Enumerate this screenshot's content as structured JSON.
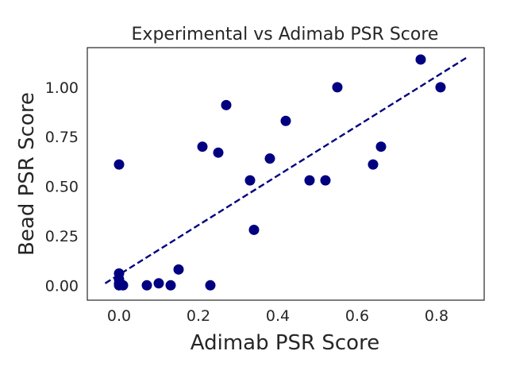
{
  "chart_data": {
    "type": "scatter",
    "title": "Experimental vs Adimab PSR Score",
    "xlabel": "Adimab PSR Score",
    "ylabel": "Bead PSR Score",
    "xlim": [
      -0.08,
      0.92
    ],
    "ylim": [
      -0.075,
      1.2
    ],
    "xticks": [
      "0.0",
      "0.2",
      "0.4",
      "0.6",
      "0.8"
    ],
    "yticks": [
      "0.00",
      "0.25",
      "0.50",
      "0.75",
      "1.00"
    ],
    "grid": false,
    "marker_color": "#000080",
    "trendline": {
      "style": "dashed",
      "color": "#000080",
      "x": [
        -0.035,
        0.88
      ],
      "y": [
        0.01,
        1.155
      ]
    },
    "points": [
      {
        "x": 0.0,
        "y": 0.0
      },
      {
        "x": 0.0,
        "y": 0.01
      },
      {
        "x": 0.0,
        "y": 0.03
      },
      {
        "x": 0.0,
        "y": 0.06
      },
      {
        "x": 0.0,
        "y": 0.61
      },
      {
        "x": 0.01,
        "y": 0.0
      },
      {
        "x": 0.07,
        "y": 0.0
      },
      {
        "x": 0.1,
        "y": 0.01
      },
      {
        "x": 0.13,
        "y": 0.0
      },
      {
        "x": 0.15,
        "y": 0.08
      },
      {
        "x": 0.21,
        "y": 0.7
      },
      {
        "x": 0.23,
        "y": 0.0
      },
      {
        "x": 0.25,
        "y": 0.67
      },
      {
        "x": 0.27,
        "y": 0.91
      },
      {
        "x": 0.33,
        "y": 0.53
      },
      {
        "x": 0.34,
        "y": 0.28
      },
      {
        "x": 0.38,
        "y": 0.64
      },
      {
        "x": 0.42,
        "y": 0.83
      },
      {
        "x": 0.48,
        "y": 0.53
      },
      {
        "x": 0.52,
        "y": 0.53
      },
      {
        "x": 0.55,
        "y": 1.0
      },
      {
        "x": 0.64,
        "y": 0.61
      },
      {
        "x": 0.66,
        "y": 0.7
      },
      {
        "x": 0.76,
        "y": 1.14
      },
      {
        "x": 0.81,
        "y": 1.0
      }
    ]
  }
}
